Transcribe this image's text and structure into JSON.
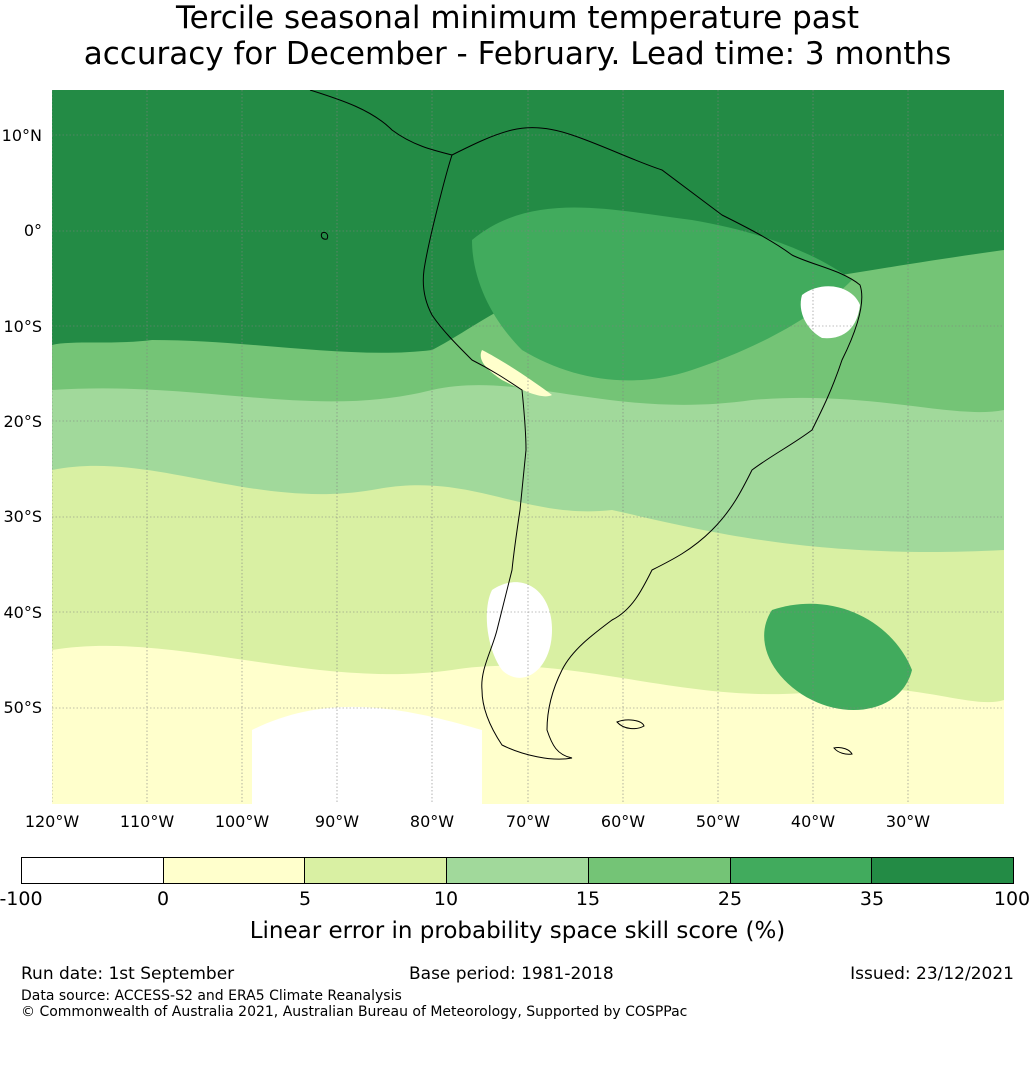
{
  "title": {
    "line1": "Tercile seasonal minimum temperature past",
    "line2": "accuracy for December - February. Lead time: 3 months"
  },
  "map": {
    "latitude_labels": [
      "10°N",
      "0°",
      "10°S",
      "20°S",
      "30°S",
      "40°S",
      "50°S"
    ],
    "longitude_labels": [
      "120°W",
      "110°W",
      "100°W",
      "90°W",
      "80°W",
      "70°W",
      "60°W",
      "50°W",
      "40°W",
      "30°W"
    ],
    "ocean_land_colors": {
      "band_over_35": "#238b45",
      "band_25_35": "#41ab5d",
      "band_15_25": "#74c476",
      "band_10_15": "#a1d99b",
      "band_5_10": "#d9f0a3",
      "band_0_5": "#ffffcc",
      "band_below_0": "#ffffff"
    },
    "coastline_color": "#000000"
  },
  "colorbar": {
    "colors": [
      "#ffffff",
      "#ffffcc",
      "#d9f0a3",
      "#a1d99b",
      "#74c476",
      "#41ab5d",
      "#238b45"
    ],
    "ticks": [
      "-100",
      "0",
      "5",
      "10",
      "15",
      "25",
      "35",
      "100"
    ],
    "label": "Linear error in probability space skill score (%)"
  },
  "footer": {
    "run_date": "Run date: 1st September",
    "base_period": "Base period: 1981-2018",
    "issued": "Issued: 23/12/2021",
    "data_source": "Data source: ACCESS-S2 and ERA5 Climate Reanalysis",
    "copyright": "© Commonwealth of Australia 2021, Australian Bureau of Meteorology, Supported by COSPPac"
  }
}
